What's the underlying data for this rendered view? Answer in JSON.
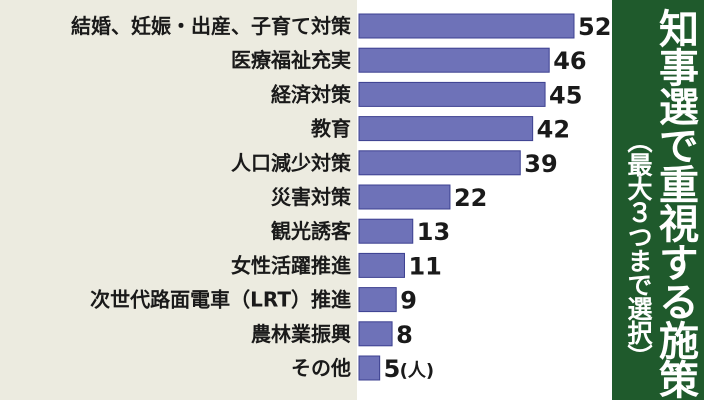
{
  "title": "知事選で重視する施策",
  "subtitle": "（最大３つまで選択）",
  "unit": "(人)",
  "colors": {
    "bar_fill": "#6e72b8",
    "bar_stroke": "#3c4090",
    "label_background": "#ecebe0",
    "title_background": "#1f5a2c"
  },
  "chart_data": {
    "type": "bar",
    "orientation": "horizontal",
    "categories": [
      "結婚、妊娠・出産、子育て対策",
      "医療福祉充実",
      "経済対策",
      "教育",
      "人口減少対策",
      "災害対策",
      "観光誘客",
      "女性活躍推進",
      "次世代路面電車（LRT）推進",
      "農林業振興",
      "その他"
    ],
    "values": [
      52,
      46,
      45,
      42,
      39,
      22,
      13,
      11,
      9,
      8,
      5
    ],
    "data_labels": [
      "52",
      "46",
      "45",
      "42",
      "39",
      "22",
      "13",
      "11",
      "9",
      "8",
      "5"
    ],
    "xlim": [
      0,
      52
    ],
    "grid": false,
    "legend": "none"
  }
}
